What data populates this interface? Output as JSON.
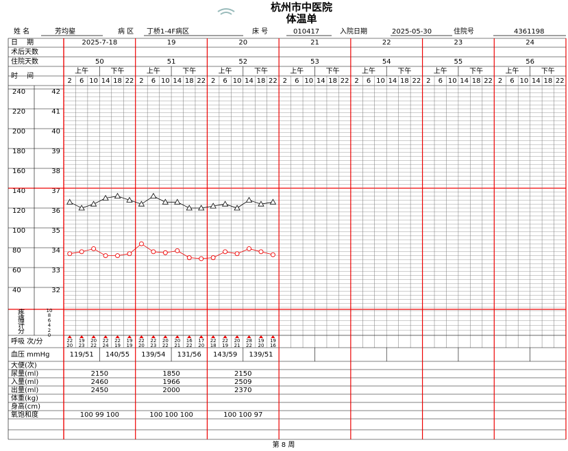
{
  "header": {
    "title": "杭州市中医院",
    "subtitle": "体温单"
  },
  "info": {
    "name_label": "姓 名",
    "name": "芳均鋆",
    "ward_label": "病 区",
    "ward": "丁桥1-4F病区",
    "bed_label": "床 号",
    "bed": "010417",
    "admit_label": "入院日期",
    "admit": "2025-05-30",
    "id_label": "住院号",
    "id": "4361198"
  },
  "rows": {
    "date": "日　 期",
    "postop": "术后天数",
    "stay": "住院天数",
    "time": "时　 间",
    "am": "上午",
    "pm": "下午",
    "pain": [
      "疼",
      "痛",
      "评",
      "分"
    ],
    "resp": "呼吸 次/分",
    "bp": "血压 mmHg",
    "stool": "大便(次)",
    "urine": "尿量(ml)",
    "intake": "入量(ml)",
    "output": "出量(ml)",
    "weight": "体重(kg)",
    "height": "身高(cm)",
    "spo2": "氧饱和度"
  },
  "days": {
    "dates": [
      "2025-7-18",
      "19",
      "20",
      "21",
      "22",
      "23",
      "24"
    ],
    "stay": [
      50,
      51,
      52,
      53,
      54,
      55,
      56
    ],
    "hours": [
      2,
      6,
      10,
      14,
      18,
      22
    ]
  },
  "scales": {
    "pulse": [
      240,
      220,
      200,
      180,
      160,
      140,
      120,
      100,
      80,
      60,
      40
    ],
    "temp": [
      42,
      41,
      40,
      39,
      38,
      37,
      36,
      35,
      34,
      33,
      32
    ],
    "pain": [
      10,
      8,
      6,
      4,
      2,
      0
    ]
  },
  "temperature": [
    36.3,
    36.0,
    36.2,
    36.5,
    36.6,
    36.4,
    36.2,
    36.6,
    36.3,
    36.3,
    36.0,
    36.0,
    36.1,
    36.2,
    36.0,
    36.4,
    36.2,
    36.3
  ],
  "pulse": [
    74,
    76,
    79,
    72,
    72,
    74,
    84,
    76,
    75,
    77,
    70,
    69,
    70,
    76,
    74,
    79,
    76,
    73
  ],
  "respiration": [
    [
      22,
      20
    ],
    [
      19,
      23
    ],
    [
      20,
      22
    ],
    [
      22,
      24
    ],
    [
      22,
      19
    ],
    [
      19,
      19
    ],
    [
      22,
      20
    ],
    [
      22,
      23
    ],
    [
      20,
      22
    ],
    [
      20,
      21
    ],
    [
      16,
      22
    ],
    [
      17,
      20
    ],
    [
      22,
      18
    ],
    [
      22,
      19
    ],
    [
      20,
      21
    ],
    [
      28,
      22
    ],
    [
      19,
      20
    ],
    [
      19,
      16
    ]
  ],
  "bp": [
    [
      "119/51",
      "140/55"
    ],
    [
      "139/54",
      "131/56"
    ],
    [
      "143/59",
      "139/51"
    ]
  ],
  "urine": [
    2150,
    1850,
    2150
  ],
  "intake": [
    2460,
    1966,
    2509
  ],
  "output": [
    2450,
    2000,
    2370
  ],
  "spo2": [
    "100 99 100",
    "100 100 100",
    "100 100 97"
  ],
  "footer": "第 8 周"
}
